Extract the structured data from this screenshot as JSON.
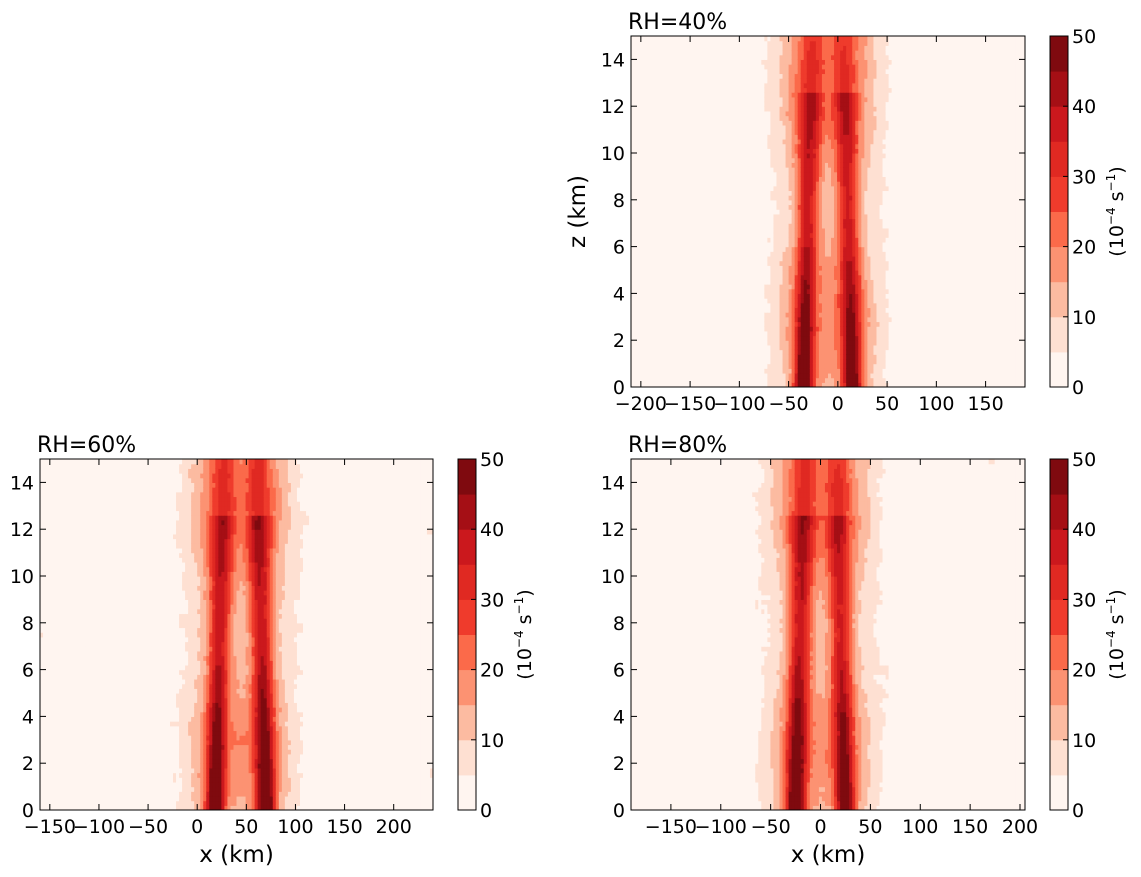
{
  "colormap": {
    "levels": [
      0,
      5,
      10,
      15,
      20,
      25,
      30,
      35,
      40,
      45,
      50
    ],
    "colors": [
      "#fff5f0",
      "#fee0d2",
      "#fcbba1",
      "#fc9272",
      "#fb6a4a",
      "#ef3b2c",
      "#e02922",
      "#cb181d",
      "#a50f15",
      "#7f0a0f"
    ]
  },
  "chart_data": [
    {
      "type": "heatmap",
      "title": "RH=40%",
      "xlabel": "",
      "ylabel": "z (km)",
      "xlim": [
        -210,
        190
      ],
      "ylim": [
        0,
        15
      ],
      "xticks": [
        -200,
        -150,
        -100,
        -50,
        0,
        50,
        100,
        150
      ],
      "xtick_labels": [
        "−200",
        "−150",
        "−100",
        "−50",
        "0",
        "50",
        "100",
        "150"
      ],
      "yticks": [
        0,
        2,
        4,
        6,
        8,
        10,
        12,
        14
      ],
      "colorbar": {
        "ticks": [
          0,
          10,
          20,
          30,
          40,
          50
        ],
        "label_base": "(10",
        "label_exp": "−4",
        "label_unit": " s",
        "label_unit_exp": "−1",
        "label_close": ")"
      },
      "features": [
        {
          "kind": "column",
          "center_x": -35,
          "peak_value": 48
        },
        {
          "kind": "column",
          "center_x": 15,
          "peak_value": 45
        }
      ]
    },
    {
      "type": "heatmap",
      "title": "RH=60%",
      "xlabel": "x (km)",
      "ylabel": "",
      "xlim": [
        -160,
        240
      ],
      "ylim": [
        0,
        15
      ],
      "xticks": [
        -150,
        -100,
        -50,
        0,
        50,
        100,
        150,
        200
      ],
      "xtick_labels": [
        "−150",
        "−100",
        "−50",
        "0",
        "50",
        "100",
        "150",
        "200"
      ],
      "yticks": [
        0,
        2,
        4,
        6,
        8,
        10,
        12,
        14
      ],
      "colorbar": {
        "ticks": [
          0,
          10,
          20,
          30,
          40,
          50
        ],
        "label_base": "(10",
        "label_exp": "−4",
        "label_unit": " s",
        "label_unit_exp": "−1",
        "label_close": ")"
      },
      "features": [
        {
          "kind": "column",
          "center_x": 18,
          "peak_value": 48
        },
        {
          "kind": "column",
          "center_x": 70,
          "peak_value": 50
        }
      ]
    },
    {
      "type": "heatmap",
      "title": "RH=80%",
      "xlabel": "x (km)",
      "ylabel": "",
      "xlim": [
        -190,
        205
      ],
      "ylim": [
        0,
        15
      ],
      "xticks": [
        -150,
        -100,
        -50,
        0,
        50,
        100,
        150,
        200
      ],
      "xtick_labels": [
        "−150",
        "−100",
        "−50",
        "0",
        "50",
        "100",
        "150",
        "200"
      ],
      "yticks": [
        0,
        2,
        4,
        6,
        8,
        10,
        12,
        14
      ],
      "colorbar": {
        "ticks": [
          0,
          10,
          20,
          30,
          40,
          50
        ],
        "label_base": "(10",
        "label_exp": "−4",
        "label_unit": " s",
        "label_unit_exp": "−1",
        "label_close": ")"
      },
      "features": [
        {
          "kind": "column",
          "center_x": -25,
          "peak_value": 50
        },
        {
          "kind": "column",
          "center_x": 25,
          "peak_value": 45
        }
      ]
    }
  ]
}
